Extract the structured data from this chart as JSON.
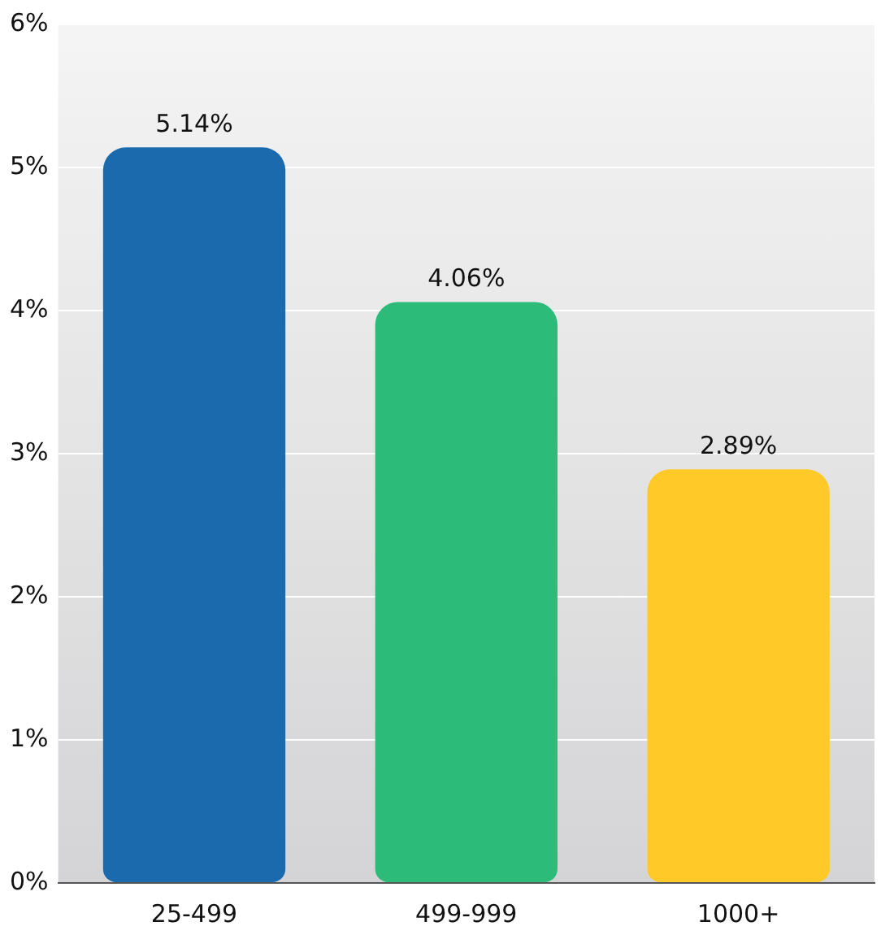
{
  "chart_data": {
    "type": "bar",
    "categories": [
      "25-499",
      "499-999",
      "1000+"
    ],
    "values": [
      5.14,
      4.06,
      2.89
    ],
    "colors": [
      "#1a6aad",
      "#2dbb7a",
      "#ffc928"
    ],
    "value_labels": [
      "5.14%",
      "4.06%",
      "2.89%"
    ],
    "ylim": [
      0,
      6
    ],
    "yticks": [
      {
        "value": 0,
        "label": "0%"
      },
      {
        "value": 1,
        "label": "1%"
      },
      {
        "value": 2,
        "label": "2%"
      },
      {
        "value": 3,
        "label": "3%"
      },
      {
        "value": 4,
        "label": "4%"
      },
      {
        "value": 5,
        "label": "5%"
      },
      {
        "value": 6,
        "label": "6%"
      }
    ],
    "grid": "y",
    "legend": false
  }
}
